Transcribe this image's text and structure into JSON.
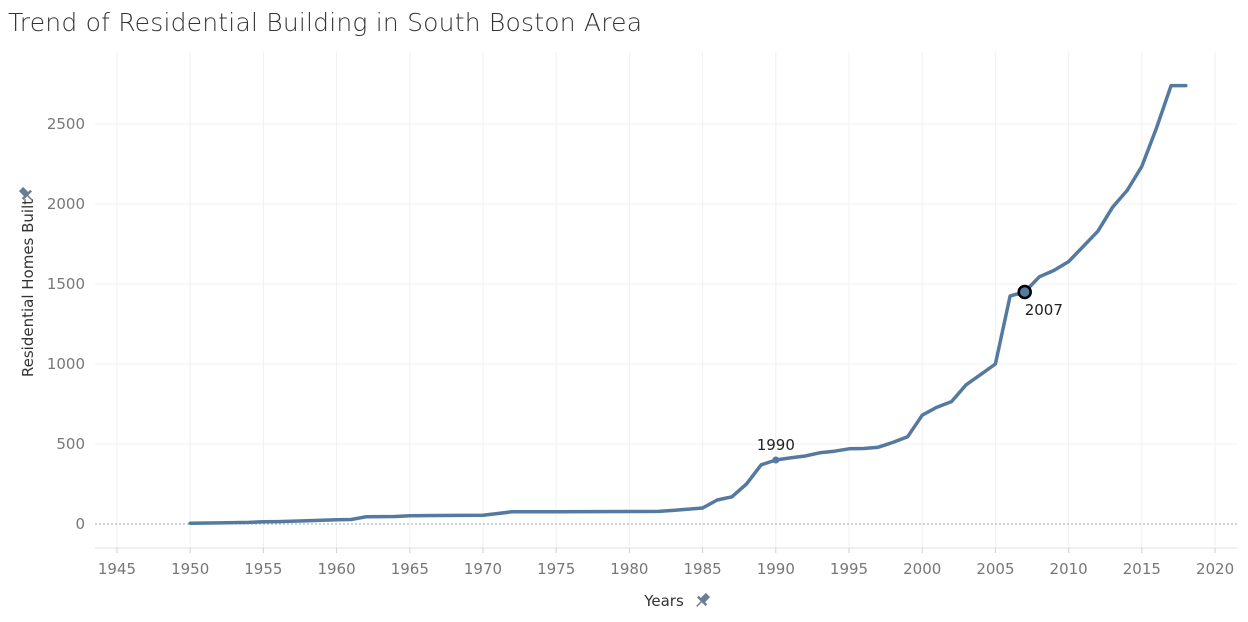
{
  "title": "Trend of Residential Building in South Boston Area",
  "chart_data": {
    "type": "line",
    "title": "Trend of Residential Building in South Boston Area",
    "xlabel": "Years",
    "ylabel": "Residential Homes Built",
    "xlim": [
      1943.5,
      2021.5
    ],
    "ylim": [
      -150,
      2950
    ],
    "x_ticks": [
      1945,
      1950,
      1955,
      1960,
      1965,
      1970,
      1975,
      1980,
      1985,
      1990,
      1995,
      2000,
      2005,
      2010,
      2015,
      2020
    ],
    "y_ticks": [
      0,
      500,
      1000,
      1500,
      2000,
      2500
    ],
    "grid": true,
    "series": [
      {
        "color": "#557a9f",
        "points": [
          [
            1950,
            5
          ],
          [
            1952,
            7
          ],
          [
            1954,
            10
          ],
          [
            1955,
            14
          ],
          [
            1956,
            15
          ],
          [
            1958,
            20
          ],
          [
            1960,
            26
          ],
          [
            1961,
            28
          ],
          [
            1962,
            45
          ],
          [
            1964,
            47
          ],
          [
            1965,
            52
          ],
          [
            1967,
            53
          ],
          [
            1970,
            55
          ],
          [
            1972,
            76
          ],
          [
            1975,
            77
          ],
          [
            1980,
            78
          ],
          [
            1982,
            79
          ],
          [
            1983,
            85
          ],
          [
            1985,
            100
          ],
          [
            1986,
            150
          ],
          [
            1987,
            170
          ],
          [
            1988,
            250
          ],
          [
            1989,
            370
          ],
          [
            1990,
            400
          ],
          [
            1991,
            413
          ],
          [
            1992,
            425
          ],
          [
            1993,
            445
          ],
          [
            1994,
            455
          ],
          [
            1995,
            470
          ],
          [
            1996,
            472
          ],
          [
            1997,
            480
          ],
          [
            1998,
            510
          ],
          [
            1999,
            545
          ],
          [
            2000,
            680
          ],
          [
            2001,
            730
          ],
          [
            2002,
            765
          ],
          [
            2003,
            870
          ],
          [
            2004,
            935
          ],
          [
            2005,
            1000
          ],
          [
            2006,
            1425
          ],
          [
            2007,
            1450
          ],
          [
            2008,
            1545
          ],
          [
            2009,
            1585
          ],
          [
            2010,
            1640
          ],
          [
            2011,
            1735
          ],
          [
            2012,
            1830
          ],
          [
            2013,
            1980
          ],
          [
            2014,
            2085
          ],
          [
            2015,
            2235
          ],
          [
            2016,
            2475
          ],
          [
            2017,
            2740
          ],
          [
            2018,
            2740
          ]
        ]
      }
    ],
    "annotations": [
      {
        "x": 1990,
        "y": 400,
        "label": "1990"
      },
      {
        "x": 2007,
        "y": 1450,
        "label": "2007"
      }
    ]
  }
}
